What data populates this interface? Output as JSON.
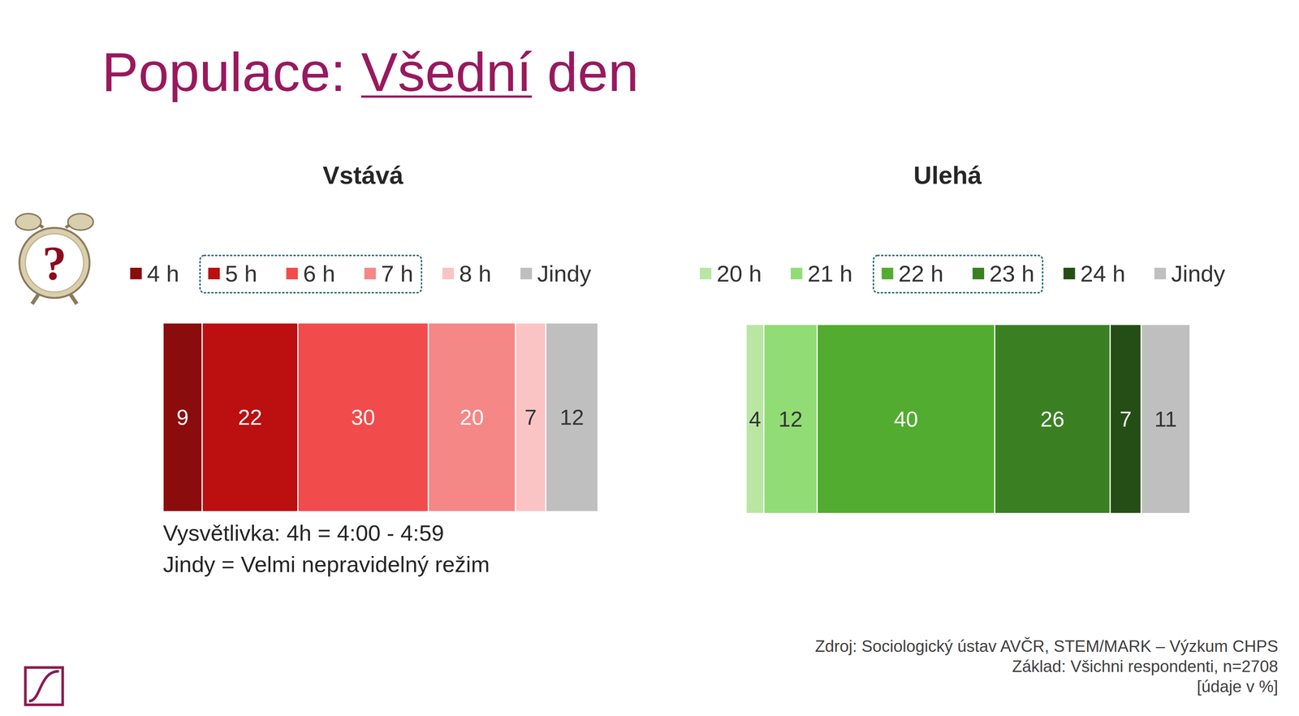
{
  "title_parts": [
    "Populace:",
    "Všední",
    "den"
  ],
  "icon": {
    "text": "?"
  },
  "chart_data": [
    {
      "type": "bar",
      "orientation": "horizontal",
      "stacked": true,
      "data_labels": true,
      "tick_labels": false,
      "legend": "top",
      "title": "Vstává",
      "categories": [
        null
      ],
      "xlim": [
        0,
        100
      ],
      "series": [
        {
          "name": "4 h",
          "color": "#8b0c0c",
          "values": [
            9
          ]
        },
        {
          "name": "5 h",
          "color": "#bb0f10",
          "values": [
            22
          ]
        },
        {
          "name": "6 h",
          "color": "#f14b4b",
          "values": [
            30
          ]
        },
        {
          "name": "7 h",
          "color": "#f58787",
          "values": [
            20
          ]
        },
        {
          "name": "8 h",
          "color": "#fbc4c4",
          "values": [
            7
          ]
        },
        {
          "name": "Jindy",
          "color": "#bfbfbf",
          "values": [
            12
          ]
        }
      ]
    },
    {
      "type": "bar",
      "orientation": "horizontal",
      "stacked": true,
      "data_labels": true,
      "tick_labels": false,
      "legend": "top",
      "title": "Ulehá",
      "categories": [
        null
      ],
      "xlim": [
        0,
        100
      ],
      "series": [
        {
          "name": "20 h",
          "color": "#b9e6a3",
          "values": [
            4
          ]
        },
        {
          "name": "21 h",
          "color": "#92dc76",
          "values": [
            12
          ]
        },
        {
          "name": "22 h",
          "color": "#52ac2f",
          "values": [
            40
          ]
        },
        {
          "name": "23 h",
          "color": "#3a8023",
          "values": [
            26
          ]
        },
        {
          "name": "24 h",
          "color": "#254e16",
          "values": [
            7
          ]
        },
        {
          "name": "Jindy",
          "color": "#bfbfbf",
          "values": [
            11
          ]
        }
      ]
    }
  ],
  "notes": [
    "Vysvětlivka: 4h = 4:00 - 4:59",
    "Jindy = Velmi nepravidelný režim"
  ],
  "source": [
    "Zdroj: Sociologický ústav AVČR, STEM/MARK – Výzkum CHPS",
    "Základ: Všichni respondenti, n=2708",
    "[údaje v %]"
  ]
}
